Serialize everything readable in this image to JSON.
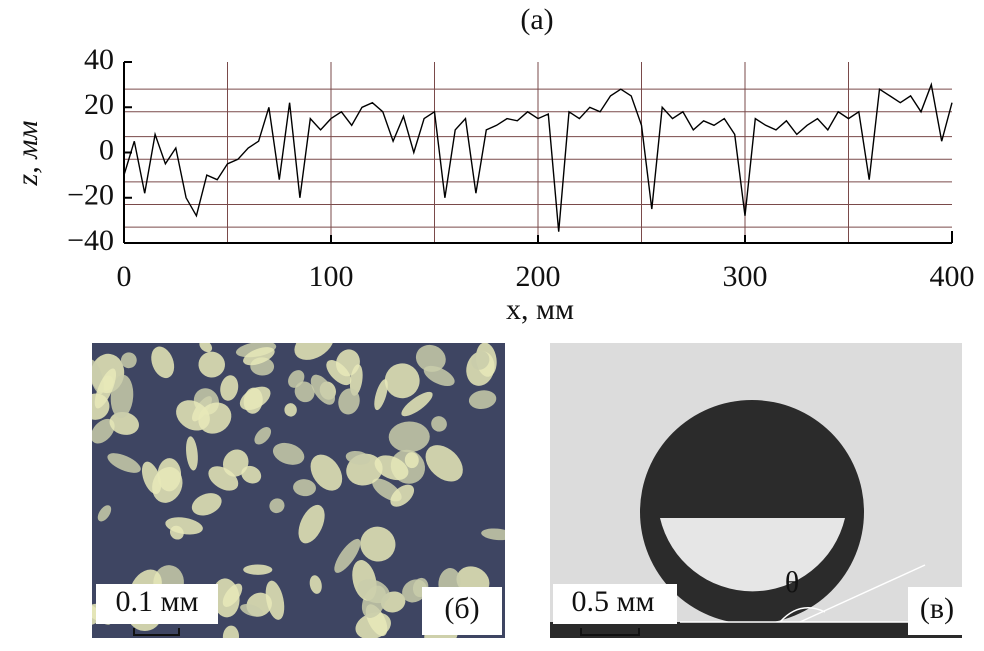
{
  "chart_data": {
    "type": "line",
    "title": "(a)",
    "x_label": "x, мм",
    "y_label": "z, мм",
    "x": [
      0,
      5,
      10,
      15,
      20,
      25,
      30,
      35,
      40,
      45,
      50,
      55,
      60,
      65,
      70,
      75,
      80,
      85,
      90,
      95,
      100,
      105,
      110,
      115,
      120,
      125,
      130,
      135,
      140,
      145,
      150,
      155,
      160,
      165,
      170,
      175,
      180,
      185,
      190,
      195,
      200,
      205,
      210,
      215,
      220,
      225,
      230,
      235,
      240,
      245,
      250,
      255,
      260,
      265,
      270,
      275,
      280,
      285,
      290,
      295,
      300,
      305,
      310,
      315,
      320,
      325,
      330,
      335,
      340,
      345,
      350,
      355,
      360,
      365,
      370,
      375,
      380,
      385,
      390,
      395,
      400
    ],
    "series": [
      {
        "color": "#000000",
        "values": [
          -10,
          5,
          -18,
          8,
          -5,
          2,
          -20,
          -28,
          -10,
          -12,
          -5,
          -3,
          2,
          5,
          20,
          -12,
          22,
          -20,
          15,
          10,
          15,
          18,
          12,
          20,
          22,
          18,
          5,
          16,
          0,
          15,
          18,
          -20,
          10,
          15,
          -18,
          10,
          12,
          15,
          14,
          18,
          15,
          17,
          -35,
          18,
          15,
          20,
          18,
          25,
          28,
          25,
          12,
          -25,
          20,
          15,
          18,
          10,
          14,
          12,
          15,
          8,
          -28,
          15,
          12,
          10,
          14,
          8,
          12,
          15,
          10,
          18,
          15,
          18,
          -12,
          28,
          25,
          22,
          25,
          18,
          30,
          5,
          22
        ]
      }
    ],
    "xlim": [
      0,
      400
    ],
    "ylim": [
      -40,
      40
    ],
    "xticks": [
      0,
      100,
      200,
      300,
      400
    ],
    "yticks": [
      {
        "value": -40,
        "label": "−40"
      },
      {
        "value": -20,
        "label": "−20"
      },
      0,
      20,
      40
    ],
    "xgrid": [
      50,
      100,
      150,
      200,
      250,
      300,
      350
    ],
    "ygrid": [
      -33,
      -23,
      -13,
      -3,
      7,
      18,
      28
    ],
    "grid_color": "#7a4a4a"
  },
  "panels": [
    {
      "label": "(б)",
      "scale": "0.1 мм"
    },
    {
      "label": "(в)",
      "scale": "0.5 мм",
      "angle": "θ"
    }
  ]
}
